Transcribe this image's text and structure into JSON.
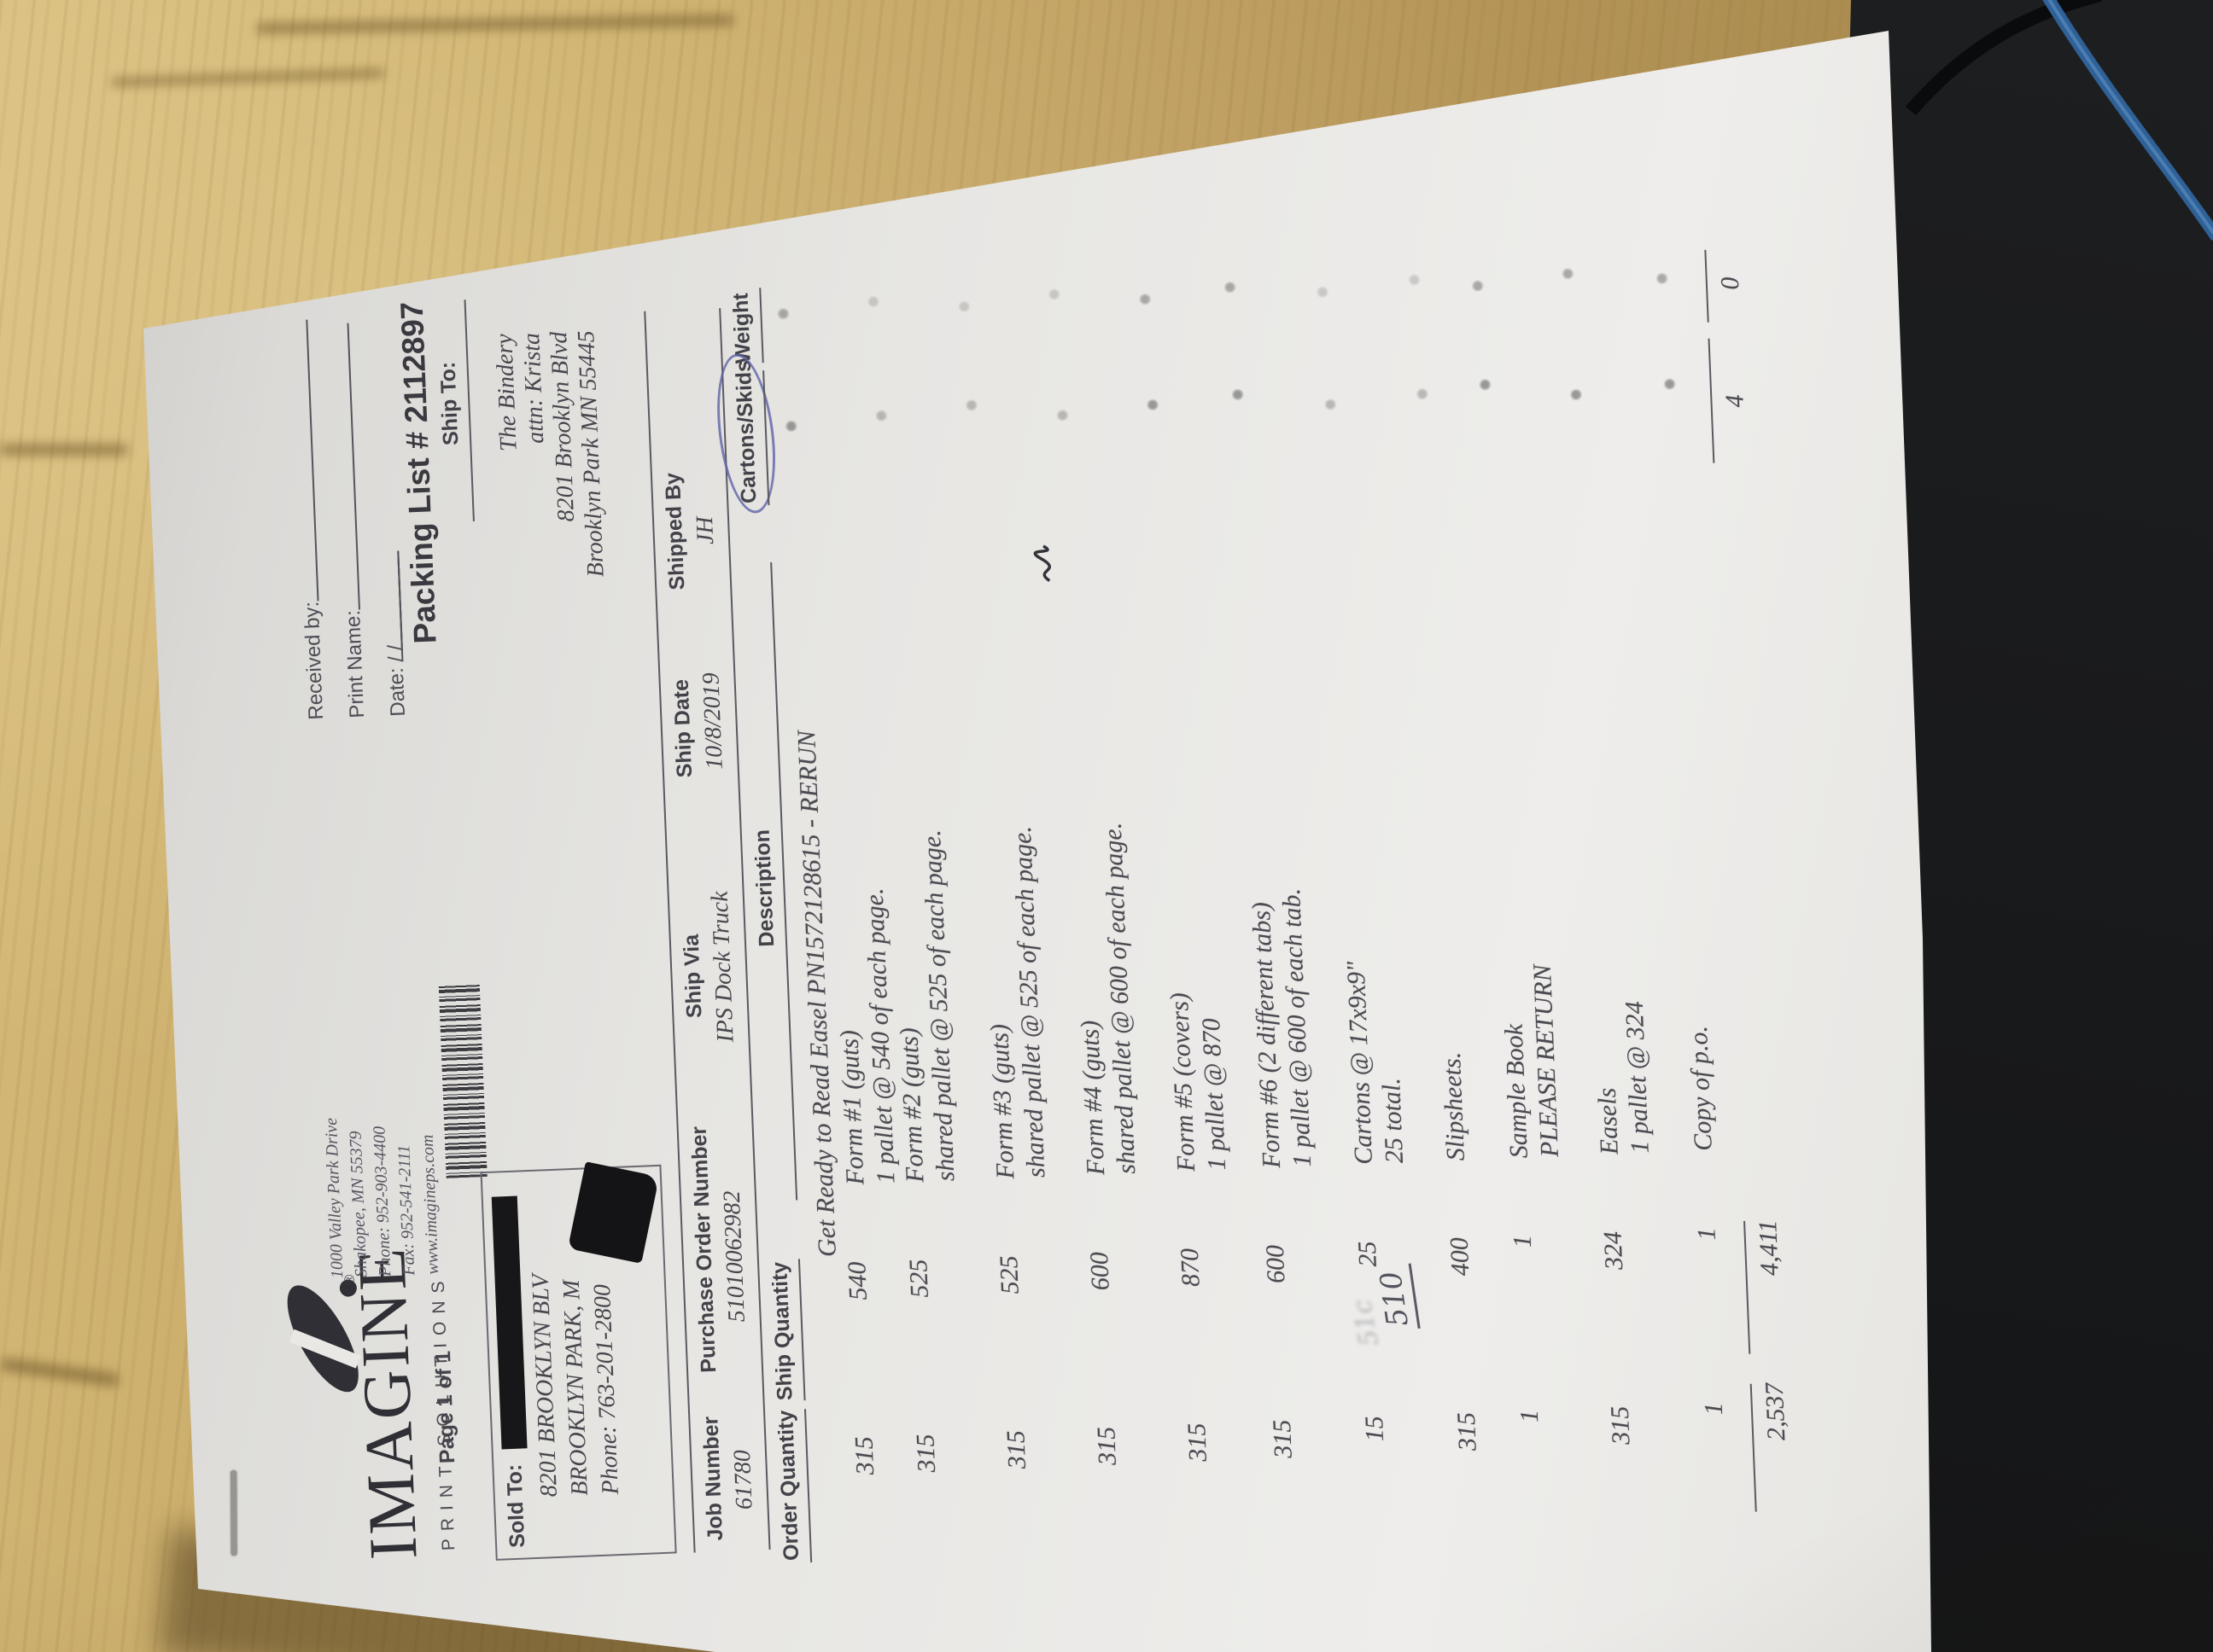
{
  "brand": {
    "name": "IMAGINE",
    "tagline": "PRINT SOLUTIONS",
    "registered_mark": "®"
  },
  "company_address": {
    "lines": [
      "1000 Valley Park Drive",
      "Shakopee, MN  55379",
      "Phone: 952-903-4400",
      "Fax:  952-541-2111",
      "www.imagineps.com"
    ]
  },
  "page_label": "Page 1 of 1",
  "receipt_block": {
    "received_by_label": "Received by:",
    "print_name_label": "Print Name:",
    "date_label": "Date:",
    "date_separator": "/"
  },
  "title": "Packing List # 2112897",
  "sold_to": {
    "label": "Sold To:",
    "lines": [
      "8201 BROOKLYN BLV",
      "BROOKLYN PARK, M",
      "Phone: 763-201-2800"
    ]
  },
  "ship_to": {
    "label": "Ship To:",
    "lines": [
      "The Bindery",
      "attn: Krista",
      "8201 Brooklyn Blvd",
      "Brooklyn Park MN  55445"
    ]
  },
  "order_header": {
    "job_number_label": "Job Number",
    "job_number": "61780",
    "po_label": "Purchase Order Number",
    "po": "51010062982",
    "ship_via_label": "Ship Via",
    "ship_via": "IPS Dock Truck",
    "ship_date_label": "Ship Date",
    "ship_date": "10/8/2019",
    "shipped_by_label": "Shipped By",
    "shipped_by": "JH"
  },
  "table": {
    "columns": [
      "Order Quantity",
      "Ship Quantity",
      "Description",
      "Cartons/Skids",
      "Weight"
    ],
    "rows": [
      {
        "order_qty": "315",
        "ship_qty": "540",
        "desc": [
          "Get Ready to Read Easel PN1572128615 - RERUN",
          "Form #1 (guts)",
          "1 pallet @ 540 of each page."
        ]
      },
      {
        "order_qty": "315",
        "ship_qty": "525",
        "desc": [
          "Form #2 (guts)",
          "shared pallet @ 525 of each page."
        ]
      },
      {
        "order_qty": "315",
        "ship_qty": "525",
        "desc": [
          "Form #3 (guts)",
          "shared pallet @ 525 of each page."
        ]
      },
      {
        "order_qty": "315",
        "ship_qty": "600",
        "desc": [
          "Form #4 (guts)",
          "shared pallet @ 600 of each page."
        ]
      },
      {
        "order_qty": "315",
        "ship_qty": "870",
        "desc": [
          "Form #5 (covers)",
          "1 pallet @ 870"
        ]
      },
      {
        "order_qty": "315",
        "ship_qty": "600",
        "desc": [
          "Form #6 (2 different tabs)",
          "1 pallet @ 600 of each tab."
        ]
      },
      {
        "order_qty": "15",
        "ship_qty": "25",
        "desc": [
          "Cartons @ 17x9x9\"",
          "25 total."
        ]
      },
      {
        "order_qty": "315",
        "ship_qty": "400",
        "desc": [
          "Slipsheets."
        ]
      },
      {
        "order_qty": "1",
        "ship_qty": "1",
        "desc": [
          "Sample Book",
          "PLEASE RETURN"
        ]
      },
      {
        "order_qty": "315",
        "ship_qty": "324",
        "desc": [
          "Easels",
          "1 pallet @ 324"
        ]
      },
      {
        "order_qty": "1",
        "ship_qty": "1",
        "desc": [
          "Copy of p.o."
        ]
      }
    ],
    "totals": {
      "order_qty": "2,537",
      "ship_qty": "4,411",
      "cartons_skids": "4",
      "weight": "0"
    }
  },
  "annotations": {
    "handwritten_qty": "510",
    "handwritten_smudge": "51c",
    "skids_circle_color": "#5c61a8"
  }
}
